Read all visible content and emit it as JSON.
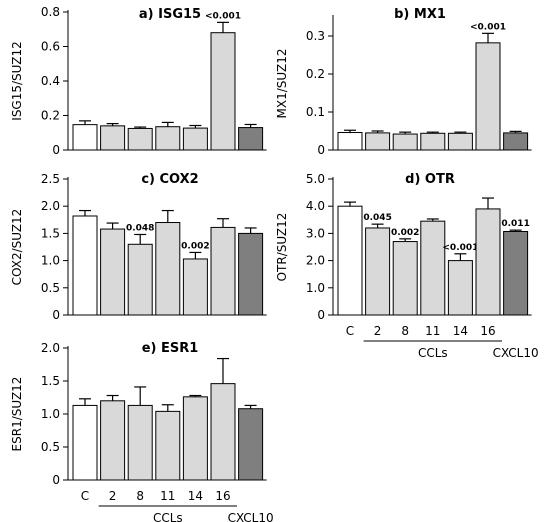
{
  "colors": {
    "control": "#ffffff",
    "ccl": "#d9d9d9",
    "cxcl10": "#7f7f7f",
    "stroke": "#000000"
  },
  "chart_data": [
    {
      "type": "bar",
      "title": "a) ISG15",
      "ylabel": "ISG15/SUZ12",
      "ylim": [
        0,
        0.8
      ],
      "yticks": [
        "0",
        "0.2",
        "0.4",
        "0.6",
        "0.8"
      ],
      "values": [
        0.147,
        0.14,
        0.125,
        0.135,
        0.127,
        0.68,
        0.13
      ],
      "errors": [
        0.022,
        0.013,
        0.008,
        0.025,
        0.015,
        0.06,
        0.018
      ],
      "pvalues": [
        "",
        "",
        "",
        "",
        "",
        "<0.001",
        ""
      ]
    },
    {
      "type": "bar",
      "title": "b) MX1",
      "ylabel": "MX1/SUZ12",
      "ylim": [
        0,
        0.35
      ],
      "yticks": [
        "0",
        "0.1",
        "0.2",
        "0.3"
      ],
      "values": [
        0.046,
        0.045,
        0.042,
        0.044,
        0.044,
        0.282,
        0.045
      ],
      "errors": [
        0.006,
        0.005,
        0.005,
        0.003,
        0.003,
        0.025,
        0.004
      ],
      "pvalues": [
        "",
        "",
        "",
        "",
        "",
        "<0.001",
        ""
      ]
    },
    {
      "type": "bar",
      "title": "c) COX2",
      "ylabel": "COX2/SUZ12",
      "ylim": [
        0,
        2.5
      ],
      "yticks": [
        "0",
        "0.5",
        "1.0",
        "1.5",
        "2.0",
        "2.5"
      ],
      "values": [
        1.82,
        1.58,
        1.3,
        1.7,
        1.03,
        1.61,
        1.5
      ],
      "errors": [
        0.1,
        0.11,
        0.18,
        0.22,
        0.12,
        0.16,
        0.1
      ],
      "pvalues": [
        "",
        "",
        "0.048",
        "",
        "0.002",
        "",
        ""
      ]
    },
    {
      "type": "bar",
      "title": "d) OTR",
      "ylabel": "OTR/SUZ12",
      "ylim": [
        0,
        5.0
      ],
      "yticks": [
        "0",
        "1.0",
        "2.0",
        "3.0",
        "4.0",
        "5.0"
      ],
      "values": [
        4.0,
        3.2,
        2.7,
        3.45,
        2.0,
        3.9,
        3.07
      ],
      "errors": [
        0.15,
        0.14,
        0.1,
        0.08,
        0.25,
        0.4,
        0.05
      ],
      "pvalues": [
        "",
        "0.045",
        "0.002",
        "",
        "<0.001",
        "",
        "0.011"
      ]
    },
    {
      "type": "bar",
      "title": "e) ESR1",
      "ylabel": "ESR1/SUZ12",
      "ylim": [
        0,
        2.0
      ],
      "yticks": [
        "0",
        "0.5",
        "1.0",
        "1.5",
        "2.0"
      ],
      "values": [
        1.13,
        1.2,
        1.13,
        1.04,
        1.26,
        1.46,
        1.08
      ],
      "errors": [
        0.1,
        0.08,
        0.28,
        0.1,
        0.02,
        0.38,
        0.05
      ],
      "pvalues": [
        "",
        "",
        "",
        "",
        "",
        "",
        ""
      ]
    }
  ],
  "categories": [
    "C",
    "2",
    "8",
    "11",
    "14",
    "16",
    ""
  ],
  "group_labels": {
    "ccl": "CCLs",
    "cxcl10": "CXCL10"
  }
}
